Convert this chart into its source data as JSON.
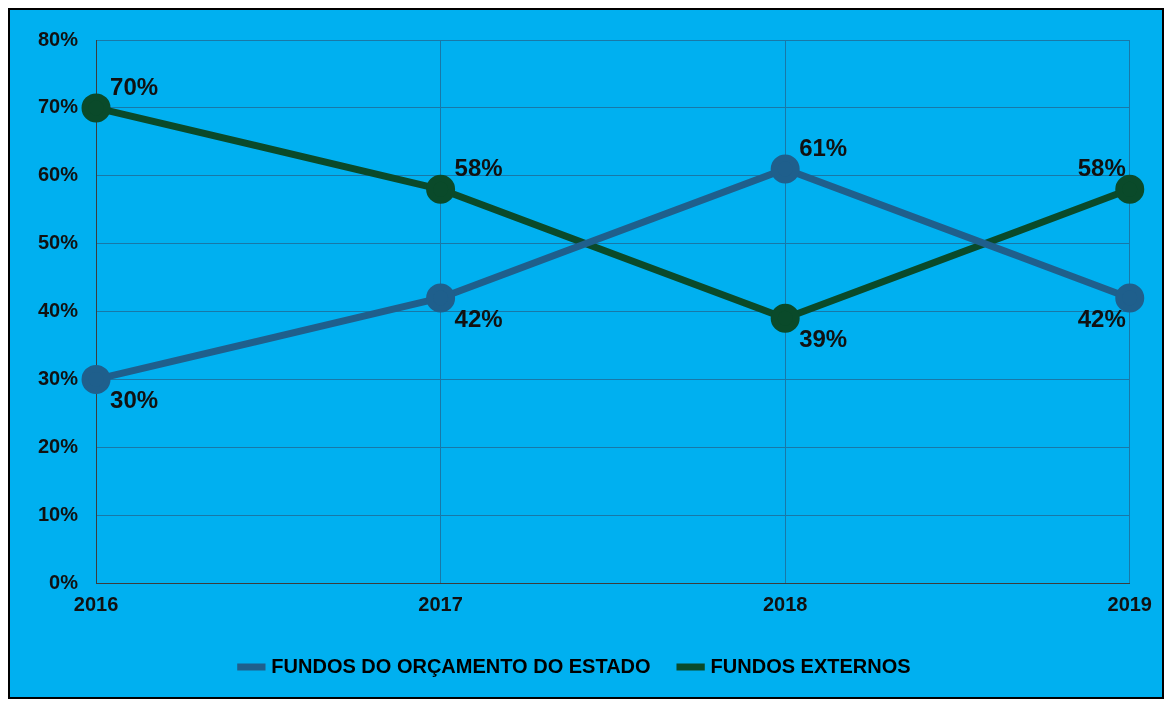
{
  "chart_data": {
    "type": "line",
    "categories": [
      "2016",
      "2017",
      "2018",
      "2019"
    ],
    "series": [
      {
        "name": "FUNDOS DO ORÇAMENTO DO ESTADO",
        "color": "#1f5f8c",
        "values": [
          30,
          42,
          61,
          42
        ],
        "value_labels": [
          "30%",
          "42%",
          "61%",
          "42%"
        ]
      },
      {
        "name": "FUNDOS EXTERNOS",
        "color": "#0a4a2a",
        "values": [
          70,
          58,
          39,
          58
        ],
        "value_labels": [
          "70%",
          "58%",
          "39%",
          "58%"
        ]
      }
    ],
    "ylim": [
      0,
      80
    ],
    "yticks": [
      {
        "value": 0,
        "label": "0%"
      },
      {
        "value": 10,
        "label": "10%"
      },
      {
        "value": 20,
        "label": "20%"
      },
      {
        "value": 30,
        "label": "30%"
      },
      {
        "value": 40,
        "label": "40%"
      },
      {
        "value": 50,
        "label": "50%"
      },
      {
        "value": 60,
        "label": "60%"
      },
      {
        "value": 70,
        "label": "70%"
      },
      {
        "value": 80,
        "label": "80%"
      }
    ],
    "grid": true,
    "legend": "bottom",
    "marker": "circle",
    "line_style": "solid"
  }
}
